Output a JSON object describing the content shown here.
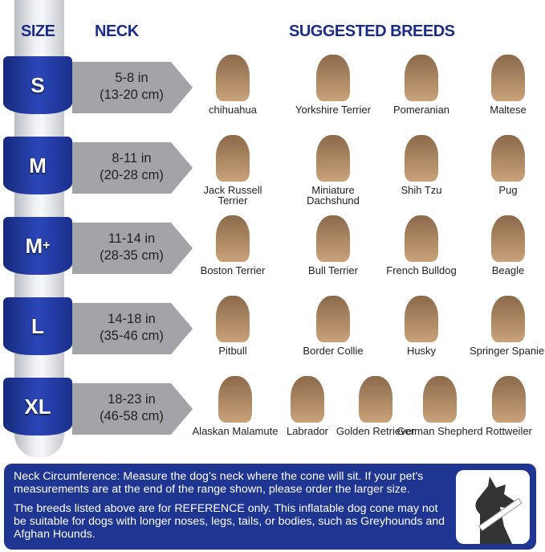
{
  "headers": {
    "size": "SIZE",
    "neck": "NECK",
    "breeds": "SUGGESTED BREEDS"
  },
  "colors": {
    "navy": "#1e3591",
    "arrow": "#a3a4a7"
  },
  "rows": [
    {
      "size": "S",
      "sup": "",
      "in": "5-8 in",
      "cm": "(13-20 cm)",
      "breeds": [
        "chihuahua",
        "Yorkshire Terrier",
        "Pomeranian",
        "Maltese"
      ]
    },
    {
      "size": "M",
      "sup": "",
      "in": "8-11 in",
      "cm": "(20-28 cm)",
      "breeds": [
        "Jack Russell Terrier",
        "Miniature Dachshund",
        "Shih Tzu",
        "Pug"
      ]
    },
    {
      "size": "M",
      "sup": "+",
      "in": "11-14 in",
      "cm": "(28-35 cm)",
      "breeds": [
        "Boston Terrier",
        "Bull Terrier",
        "French Bulldog",
        "Beagle"
      ]
    },
    {
      "size": "L",
      "sup": "",
      "in": "14-18 in",
      "cm": "(35-46 cm)",
      "breeds": [
        "Pitbull",
        "Border Collie",
        "Husky",
        "Springer Spaniel"
      ]
    },
    {
      "size": "XL",
      "sup": "",
      "in": "18-23 in",
      "cm": "(46-58 cm)",
      "breeds": [
        "Alaskan Malamute",
        "Labrador",
        "Golden Retriever",
        "German Shepherd",
        "Rottweiler"
      ]
    }
  ],
  "note": {
    "p1": "Neck Circumference: Measure the dog’s neck where the cone will sit. If your pet's measurements are at the end of the range shown, please order the larger size.",
    "p2": "The breeds listed above are for REFERENCE only. This inflatable dog cone may not be suitable for dogs with longer noses, legs, tails, or bodies, such as Greyhounds and Afghan Hounds.",
    "icon": "dog-measuring-neck-icon"
  }
}
